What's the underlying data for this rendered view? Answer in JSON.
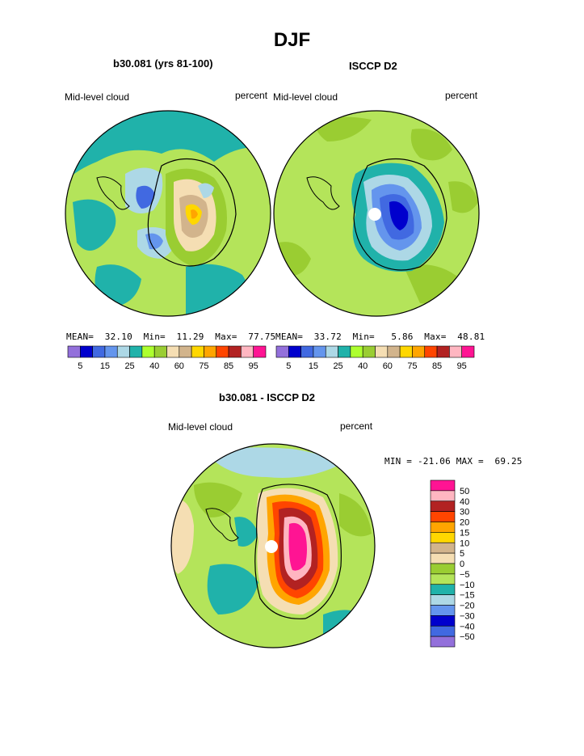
{
  "figure": {
    "title": "DJF"
  },
  "colors": {
    "scale": [
      "#9370DB",
      "#0000CD",
      "#4169E1",
      "#6495ED",
      "#ADD8E6",
      "#20B2AA",
      "#ADFF2F",
      "#9ACD32",
      "#F5DEB3",
      "#D2B48C",
      "#FFD700",
      "#FFA500",
      "#FF4500",
      "#B22222",
      "#FFB6C1",
      "#FF1493"
    ],
    "diff_scale": [
      "#9370DB",
      "#4169E1",
      "#0000CD",
      "#6495ED",
      "#ADD8E6",
      "#20B2AA",
      "#B4E45A",
      "#9ACD32",
      "#F5DEB3",
      "#D2B48C",
      "#FFD700",
      "#FFA500",
      "#FF4500",
      "#B22222",
      "#FFB6C1",
      "#FF1493"
    ],
    "coast": "#000000"
  },
  "chart_data": [
    {
      "type": "heatmap",
      "projection": "south-polar-stereographic",
      "title": "b30.081 (yrs 81-100)",
      "left_label": "Mid-level cloud",
      "right_label": "percent",
      "stats": {
        "mean_label": "MEAN=",
        "mean": "32.10",
        "min_label": "Min=",
        "min": "11.29",
        "max_label": "Max=",
        "max": "77.75"
      },
      "colorbar": {
        "levels": [
          5,
          10,
          15,
          20,
          25,
          30,
          35,
          40,
          45,
          50,
          55,
          60,
          65,
          70,
          75,
          80,
          85,
          90,
          95
        ],
        "tick_labels": [
          "5",
          "15",
          "25",
          "40",
          "60",
          "75",
          "85",
          "95"
        ]
      }
    },
    {
      "type": "heatmap",
      "projection": "south-polar-stereographic",
      "title": "ISCCP D2",
      "left_label": "Mid-level cloud",
      "right_label": "percent",
      "stats": {
        "mean_label": "MEAN=",
        "mean": "33.72",
        "min_label": "Min=",
        "min": "5.86",
        "max_label": "Max=",
        "max": "48.81"
      },
      "colorbar": {
        "levels": [
          5,
          10,
          15,
          20,
          25,
          30,
          35,
          40,
          45,
          50,
          55,
          60,
          65,
          70,
          75,
          80,
          85,
          90,
          95
        ],
        "tick_labels": [
          "5",
          "15",
          "25",
          "40",
          "60",
          "75",
          "85",
          "95"
        ]
      }
    },
    {
      "type": "heatmap",
      "projection": "south-polar-stereographic",
      "title": "b30.081 - ISCCP D2",
      "left_label": "Mid-level cloud",
      "right_label": "percent",
      "stats": {
        "min_label": "MIN =",
        "min": "-21.06",
        "max_label": "MAX =",
        "max": "69.25"
      },
      "colorbar": {
        "levels": [
          50,
          40,
          30,
          20,
          15,
          10,
          5,
          0,
          -5,
          -10,
          -15,
          -20,
          -30,
          -40,
          -50
        ],
        "tick_labels": [
          "50",
          "40",
          "30",
          "20",
          "15",
          "10",
          "5",
          "0",
          "−5",
          "−10",
          "−15",
          "−20",
          "−30",
          "−40",
          "−50"
        ]
      }
    }
  ]
}
